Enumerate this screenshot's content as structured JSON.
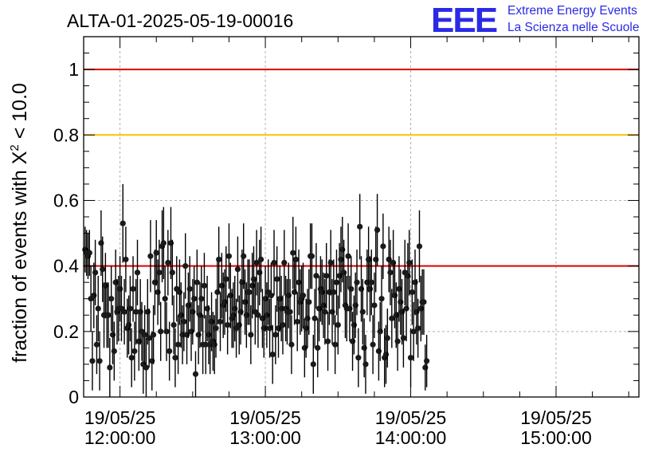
{
  "logo": {
    "mark": "EEE",
    "line1": "Extreme Energy Events",
    "line2": "La Scienza nelle Scuole",
    "color": "#2a2ae6"
  },
  "chart_data": {
    "type": "scatter",
    "title": "ALTA-01-2025-05-19-00016",
    "ylabel_prefix": "fraction of events with ",
    "ylabel_symbol": "X",
    "ylabel_sup": "2",
    "ylabel_suffix": " < 10.0",
    "xlabel": "",
    "ylim": [
      0,
      1.1
    ],
    "xlim_hours": [
      11.75,
      15.57
    ],
    "yticks": [
      {
        "v": 0,
        "label": "0"
      },
      {
        "v": 0.2,
        "label": "0.2"
      },
      {
        "v": 0.4,
        "label": "0.4"
      },
      {
        "v": 0.6,
        "label": "0.6"
      },
      {
        "v": 0.8,
        "label": "0.8"
      },
      {
        "v": 1,
        "label": "1"
      }
    ],
    "xticks": [
      {
        "h": 12,
        "date": "19/05/25",
        "time": "12:00:00"
      },
      {
        "h": 13,
        "date": "19/05/25",
        "time": "13:00:00"
      },
      {
        "h": 14,
        "date": "19/05/25",
        "time": "14:00:00"
      },
      {
        "h": 15,
        "date": "19/05/25",
        "time": "15:00:00"
      }
    ],
    "grid": true,
    "reference_lines": [
      {
        "y": 1.0,
        "color": "#e00000"
      },
      {
        "y": 0.8,
        "color": "#ffc000"
      },
      {
        "y": 0.4,
        "color": "#e00000"
      }
    ],
    "series": [
      {
        "name": "fraction",
        "x_start_hours": 11.76,
        "x_step_hours": 0.01,
        "values": [
          0.45,
          0.44,
          0.43,
          0.44,
          0.3,
          0.11,
          0.31,
          0.38,
          0.16,
          0.27,
          0.11,
          0.47,
          0.39,
          0.25,
          0.34,
          0.25,
          0.25,
          0.09,
          0.3,
          0.19,
          0.14,
          0.35,
          0.26,
          0.27,
          0.33,
          0.27,
          0.53,
          0.26,
          0.42,
          0.21,
          0.22,
          0.27,
          0.12,
          0.33,
          0.14,
          0.26,
          0.38,
          0.17,
          0.26,
          0.2,
          0.1,
          0.19,
          0.09,
          0.26,
          0.18,
          0.43,
          0.11,
          0.19,
          0.35,
          0.44,
          0.32,
          0.38,
          0.2,
          0.46,
          0.47,
          0.3,
          0.2,
          0.41,
          0.14,
          0.47,
          0.38,
          0.22,
          0.12,
          0.33,
          0.16,
          0.32,
          0.25,
          0.19,
          0.23,
          0.4,
          0.19,
          0.28,
          0.33,
          0.2,
          0.26,
          0.3,
          0.07,
          0.35,
          0.19,
          0.25,
          0.3,
          0.16,
          0.34,
          0.16,
          0.27,
          0.19,
          0.16,
          0.23,
          0.17,
          0.16,
          0.21,
          0.32,
          0.42,
          0.23,
          0.34,
          0.28,
          0.29,
          0.36,
          0.22,
          0.43,
          0.31,
          0.24,
          0.25,
          0.27,
          0.21,
          0.39,
          0.22,
          0.26,
          0.35,
          0.43,
          0.29,
          0.25,
          0.32,
          0.32,
          0.19,
          0.34,
          0.36,
          0.26,
          0.41,
          0.25,
          0.38,
          0.42,
          0.24,
          0.21,
          0.3,
          0.25,
          0.32,
          0.21,
          0.31,
          0.13,
          0.41,
          0.19,
          0.36,
          0.21,
          0.3,
          0.27,
          0.22,
          0.41,
          0.27,
          0.26,
          0.31,
          0.26,
          0.16,
          0.44,
          0.32,
          0.42,
          0.23,
          0.35,
          0.29,
          0.3,
          0.31,
          0.15,
          0.21,
          0.24,
          0.29,
          0.43,
          0.43,
          0.1,
          0.24,
          0.37,
          0.15,
          0.27,
          0.33,
          0.32,
          0.28,
          0.26,
          0.37,
          0.17,
          0.32,
          0.41,
          0.26,
          0.32,
          0.16,
          0.35,
          0.22,
          0.37,
          0.42,
          0.45,
          0.38,
          0.28,
          0.27,
          0.43,
          0.27,
          0.33,
          0.17,
          0.22,
          0.28,
          0.35,
          0.12,
          0.52,
          0.33,
          0.26,
          0.15,
          0.1,
          0.35,
          0.42,
          0.33,
          0.35,
          0.16,
          0.28,
          0.42,
          0.51,
          0.14,
          0.2,
          0.3,
          0.46,
          0.12,
          0.13,
          0.18,
          0.42,
          0.38,
          0.24,
          0.41,
          0.31,
          0.25,
          0.17,
          0.33,
          0.29,
          0.26,
          0.18,
          0.38,
          0.27,
          0.37,
          0.41,
          0.12,
          0.32,
          0.2,
          0.35,
          0.26,
          0.21,
          0.46,
          0.27,
          0.29,
          0.29,
          0.09,
          0.11
        ],
        "errors": [
          0.07,
          0.07,
          0.07,
          0.07,
          0.1,
          0.09,
          0.1,
          0.1,
          0.09,
          0.1,
          0.09,
          0.1,
          0.1,
          0.1,
          0.1,
          0.1,
          0.1,
          0.09,
          0.1,
          0.09,
          0.09,
          0.1,
          0.1,
          0.1,
          0.1,
          0.1,
          0.12,
          0.1,
          0.1,
          0.09,
          0.09,
          0.1,
          0.09,
          0.1,
          0.09,
          0.1,
          0.1,
          0.09,
          0.1,
          0.09,
          0.09,
          0.09,
          0.09,
          0.1,
          0.09,
          0.11,
          0.09,
          0.09,
          0.1,
          0.1,
          0.1,
          0.1,
          0.09,
          0.11,
          0.11,
          0.1,
          0.09,
          0.1,
          0.09,
          0.11,
          0.1,
          0.09,
          0.09,
          0.1,
          0.09,
          0.1,
          0.1,
          0.09,
          0.09,
          0.1,
          0.09,
          0.1,
          0.1,
          0.09,
          0.1,
          0.1,
          0.07,
          0.1,
          0.09,
          0.1,
          0.1,
          0.09,
          0.1,
          0.09,
          0.1,
          0.09,
          0.09,
          0.09,
          0.09,
          0.09,
          0.09,
          0.1,
          0.1,
          0.09,
          0.1,
          0.1,
          0.1,
          0.1,
          0.09,
          0.1,
          0.1,
          0.09,
          0.1,
          0.1,
          0.09,
          0.1,
          0.09,
          0.1,
          0.1,
          0.1,
          0.1,
          0.1,
          0.1,
          0.1,
          0.09,
          0.1,
          0.1,
          0.1,
          0.1,
          0.1,
          0.1,
          0.1,
          0.09,
          0.09,
          0.1,
          0.1,
          0.1,
          0.09,
          0.1,
          0.09,
          0.1,
          0.09,
          0.1,
          0.09,
          0.1,
          0.1,
          0.09,
          0.1,
          0.1,
          0.1,
          0.1,
          0.1,
          0.09,
          0.11,
          0.1,
          0.1,
          0.09,
          0.1,
          0.1,
          0.1,
          0.1,
          0.09,
          0.09,
          0.09,
          0.1,
          0.1,
          0.1,
          0.09,
          0.09,
          0.1,
          0.09,
          0.1,
          0.1,
          0.1,
          0.1,
          0.1,
          0.1,
          0.09,
          0.1,
          0.1,
          0.1,
          0.1,
          0.09,
          0.1,
          0.09,
          0.1,
          0.1,
          0.1,
          0.1,
          0.1,
          0.1,
          0.1,
          0.1,
          0.1,
          0.09,
          0.09,
          0.1,
          0.1,
          0.09,
          0.1,
          0.1,
          0.1,
          0.09,
          0.09,
          0.1,
          0.1,
          0.1,
          0.1,
          0.09,
          0.1,
          0.1,
          0.11,
          0.09,
          0.09,
          0.1,
          0.1,
          0.09,
          0.09,
          0.09,
          0.1,
          0.1,
          0.09,
          0.1,
          0.1,
          0.1,
          0.09,
          0.1,
          0.1,
          0.1,
          0.09,
          0.1,
          0.1,
          0.1,
          0.1,
          0.09,
          0.1,
          0.09,
          0.1,
          0.1,
          0.09,
          0.11,
          0.1,
          0.1,
          0.1,
          0.07,
          0.08
        ]
      }
    ]
  }
}
